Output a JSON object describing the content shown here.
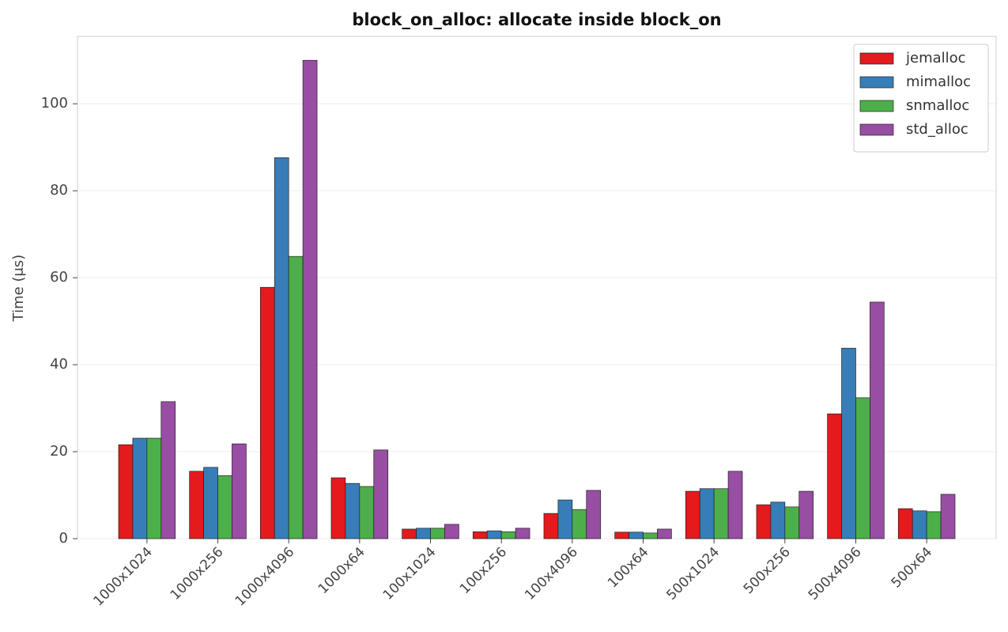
{
  "chart_data": {
    "type": "bar",
    "title": "block_on_alloc: allocate inside block_on",
    "y_label": "Time (μs)",
    "categories": [
      "1000x1024",
      "1000x256",
      "1000x4096",
      "1000x64",
      "100x1024",
      "100x256",
      "100x4096",
      "100x64",
      "500x1024",
      "500x256",
      "500x4096",
      "500x64"
    ],
    "series": [
      {
        "name": "jemalloc",
        "color": "#e41a1c",
        "values": [
          21.6,
          15.5,
          57.8,
          14.0,
          2.2,
          1.6,
          5.8,
          1.5,
          10.9,
          7.8,
          28.7,
          6.9
        ]
      },
      {
        "name": "mimalloc",
        "color": "#377eb8",
        "values": [
          23.1,
          16.4,
          87.6,
          12.7,
          2.4,
          1.8,
          8.9,
          1.5,
          11.5,
          8.4,
          43.8,
          6.4
        ]
      },
      {
        "name": "snmalloc",
        "color": "#4daf4a",
        "values": [
          23.1,
          14.5,
          64.9,
          12.0,
          2.4,
          1.6,
          6.7,
          1.3,
          11.5,
          7.3,
          32.4,
          6.2
        ]
      },
      {
        "name": "std_alloc",
        "color": "#984ea3",
        "values": [
          31.5,
          21.8,
          110.0,
          20.4,
          3.3,
          2.4,
          11.1,
          2.2,
          15.5,
          10.9,
          54.4,
          10.2
        ]
      }
    ],
    "ylim": [
      0,
      115.5
    ],
    "yticks": [
      0,
      20,
      40,
      60,
      80,
      100
    ],
    "grid": true,
    "legend": "upper right"
  }
}
